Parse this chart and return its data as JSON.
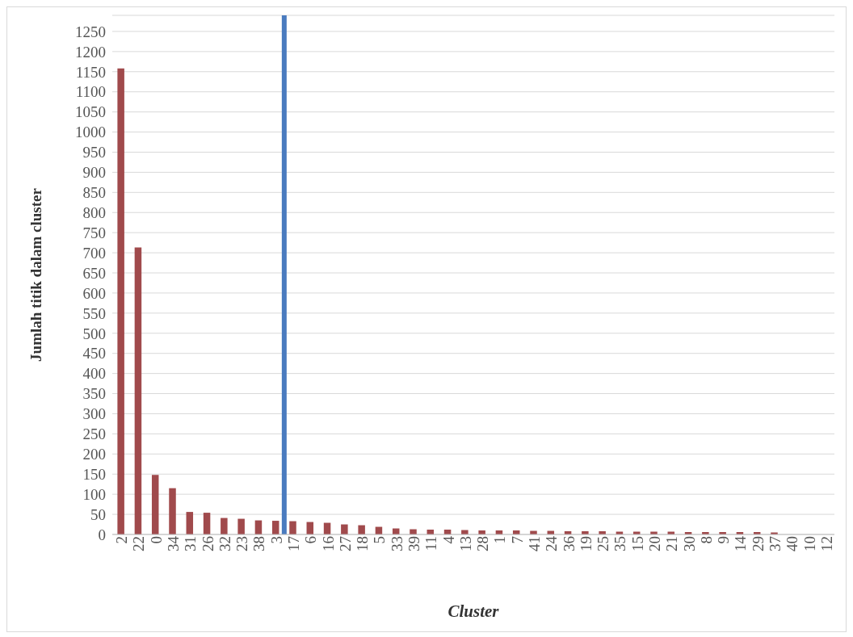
{
  "chart_data": {
    "type": "bar",
    "xlabel": "Cluster",
    "ylabel": "Jumlah titik dalam cluster",
    "categories": [
      "2",
      "22",
      "0",
      "34",
      "31",
      "26",
      "32",
      "23",
      "38",
      "3",
      "17",
      "6",
      "16",
      "27",
      "18",
      "5",
      "33",
      "39",
      "11",
      "4",
      "13",
      "28",
      "1",
      "7",
      "41",
      "24",
      "36",
      "19",
      "25",
      "35",
      "15",
      "20",
      "21",
      "30",
      "8",
      "9",
      "14",
      "29",
      "37",
      "40",
      "10",
      "12"
    ],
    "values": [
      1158,
      713,
      148,
      115,
      56,
      54,
      41,
      39,
      35,
      34,
      33,
      31,
      29,
      25,
      23,
      19,
      15,
      13,
      12,
      12,
      11,
      10,
      10,
      10,
      9,
      9,
      8,
      8,
      8,
      7,
      7,
      7,
      7,
      6,
      6,
      6,
      6,
      6,
      5,
      null,
      null,
      null
    ],
    "color": "#a04a4c",
    "ylim": [
      0,
      1290
    ],
    "yticks": [
      0,
      50,
      100,
      150,
      200,
      250,
      300,
      350,
      400,
      450,
      500,
      550,
      600,
      650,
      700,
      750,
      800,
      850,
      900,
      950,
      1000,
      1050,
      1100,
      1150,
      1200,
      1250
    ],
    "ref_lines": [
      {
        "axis": "x",
        "value": "17",
        "color": "#4a7bbf"
      }
    ],
    "grid": "y"
  }
}
